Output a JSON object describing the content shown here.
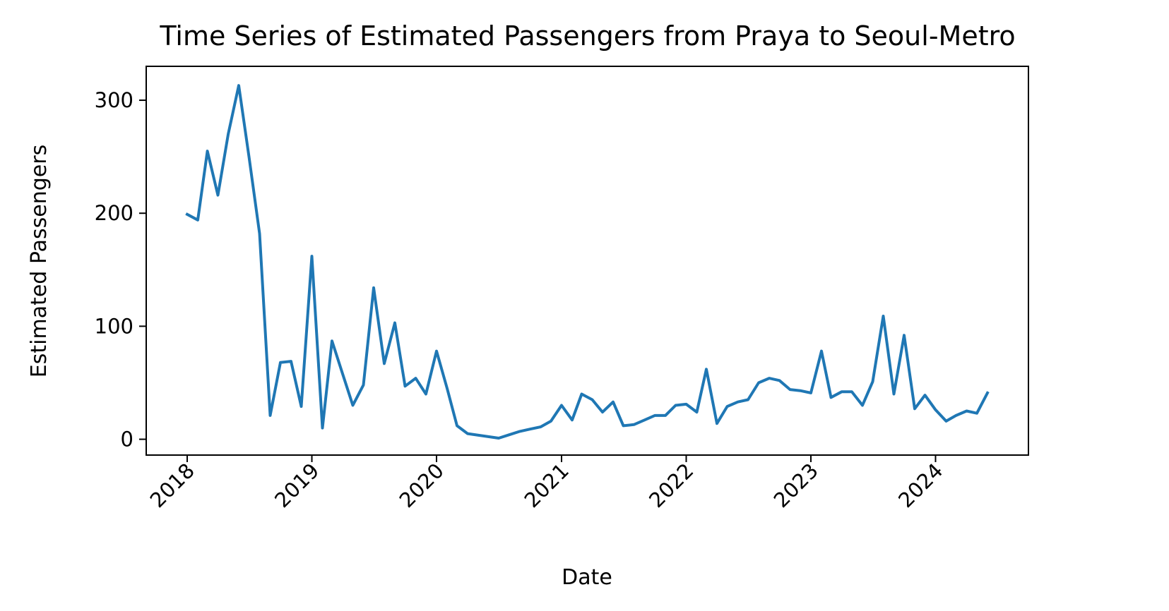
{
  "chart_data": {
    "type": "line",
    "title": "Time Series of Estimated Passengers from Praya to Seoul-Metro",
    "xlabel": "Date",
    "ylabel": "Estimated Passengers",
    "x_ticks": [
      "2018",
      "2019",
      "2020",
      "2021",
      "2022",
      "2023",
      "2024"
    ],
    "y_ticks": [
      "0",
      "100",
      "200",
      "300"
    ],
    "xlim": [
      "2017-09-03",
      "2024-09-29"
    ],
    "ylim": [
      -14,
      330
    ],
    "grid": false,
    "line_color": "#1f77b4",
    "series": [
      {
        "x": [
          "2018-01",
          "2018-02",
          "2018-03",
          "2018-04",
          "2018-05",
          "2018-06",
          "2018-07",
          "2018-08",
          "2018-09",
          "2018-10",
          "2018-11",
          "2018-12",
          "2019-01",
          "2019-02",
          "2019-03",
          "2019-04",
          "2019-05",
          "2019-06",
          "2019-07",
          "2019-08",
          "2019-09",
          "2019-10",
          "2019-11",
          "2019-12",
          "2020-01",
          "2020-02",
          "2020-03",
          "2020-04",
          "2020-07",
          "2020-08",
          "2020-09",
          "2020-10",
          "2020-11",
          "2020-12",
          "2021-01",
          "2021-02",
          "2021-03",
          "2021-04",
          "2021-05",
          "2021-06",
          "2021-07",
          "2021-08",
          "2021-09",
          "2021-10",
          "2021-11",
          "2021-12",
          "2022-01",
          "2022-02",
          "2022-03",
          "2022-04",
          "2022-05",
          "2022-06",
          "2022-07",
          "2022-08",
          "2022-09",
          "2022-10",
          "2022-11",
          "2022-12",
          "2023-01",
          "2023-02",
          "2023-03",
          "2023-04",
          "2023-05",
          "2023-06",
          "2023-07",
          "2023-08",
          "2023-09",
          "2023-10",
          "2023-11",
          "2023-12",
          "2024-01",
          "2024-02",
          "2024-03",
          "2024-04",
          "2024-05",
          "2024-06"
        ],
        "y": [
          199,
          194,
          255,
          216,
          270,
          313,
          250,
          182,
          21,
          68,
          69,
          29,
          162,
          10,
          87,
          58,
          30,
          48,
          134,
          67,
          103,
          47,
          54,
          40,
          78,
          45,
          12,
          5,
          1,
          4,
          7,
          9,
          11,
          16,
          30,
          17,
          40,
          35,
          24,
          33,
          12,
          13,
          17,
          21,
          21,
          30,
          31,
          24,
          62,
          14,
          29,
          33,
          35,
          50,
          54,
          52,
          44,
          43,
          41,
          78,
          37,
          42,
          42,
          30,
          51,
          109,
          40,
          92,
          27,
          39,
          26,
          16,
          21,
          25,
          23,
          41
        ]
      }
    ]
  }
}
